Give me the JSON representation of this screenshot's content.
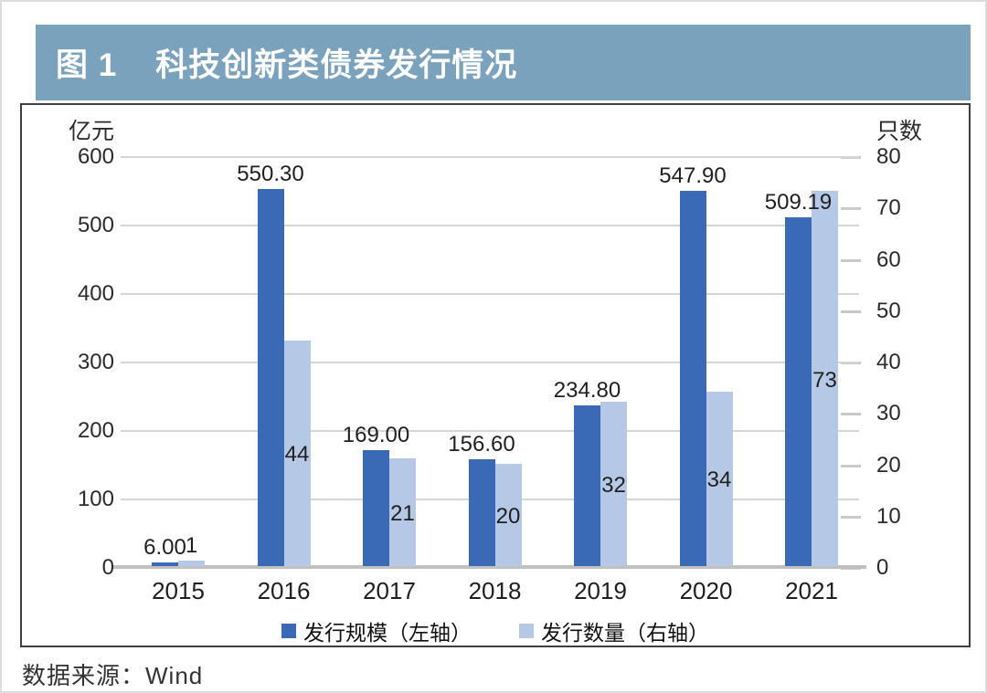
{
  "page": {
    "figure_label": "图 1",
    "figure_title": "科技创新类债券发行情况",
    "source": "数据来源：Wind"
  },
  "colors": {
    "title_bar_bg": "#7ba2bd",
    "title_text": "#ffffff",
    "bar_scale": "#3a6ab6",
    "bar_count": "#b5c8e6",
    "gridline": "#d6d6d6",
    "baseline": "#c0c0c0",
    "chart_border": "#3f3f3f",
    "text": "#1f1f1f"
  },
  "chart_data": {
    "type": "bar",
    "title": "科技创新类债券发行情况",
    "categories": [
      "2015",
      "2016",
      "2017",
      "2018",
      "2019",
      "2020",
      "2021"
    ],
    "series": [
      {
        "name": "发行规模（左轴）",
        "axis": "left",
        "color": "#3a6ab6",
        "values": [
          6.0,
          550.3,
          169.0,
          156.6,
          234.8,
          547.9,
          509.19
        ],
        "labels": [
          "6.00",
          "550.30",
          "169.00",
          "156.60",
          "234.80",
          "547.90",
          "509.19"
        ]
      },
      {
        "name": "发行数量（右轴）",
        "axis": "right",
        "color": "#b5c8e6",
        "values": [
          1,
          44,
          21,
          20,
          32,
          34,
          73
        ],
        "labels": [
          "1",
          "44",
          "21",
          "20",
          "32",
          "34",
          "73"
        ]
      }
    ],
    "left_axis": {
      "label": "亿元",
      "min": 0,
      "max": 600,
      "step": 100,
      "ticks": [
        "600",
        "500",
        "400",
        "300",
        "200",
        "100",
        "0"
      ]
    },
    "right_axis": {
      "label": "只数",
      "min": 0,
      "max": 80,
      "step": 10,
      "ticks": [
        "80",
        "70",
        "60",
        "50",
        "40",
        "30",
        "20",
        "10",
        "0"
      ]
    },
    "legend": [
      "发行规模（左轴）",
      "发行数量（右轴）"
    ],
    "legend_position": "bottom",
    "grid": true
  }
}
